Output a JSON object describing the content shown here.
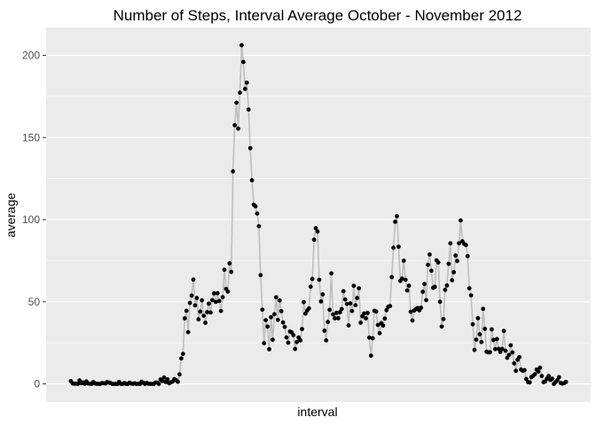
{
  "chart_data": {
    "type": "line",
    "title": "Number of Steps, Interval Average October - November 2012",
    "xlabel": "interval",
    "ylabel": "average",
    "ylim": [
      -11,
      217
    ],
    "yticks": [
      0,
      50,
      100,
      150,
      200
    ],
    "x_tick_labels_shown": false,
    "grid": true,
    "points_marked": true,
    "colors": {
      "panel_background": "#ebebeb",
      "grid": "#ffffff",
      "line": "#bebebe",
      "point": "#000000"
    },
    "series": [
      {
        "values": [
          1.7,
          0.3,
          0.1,
          0.2,
          0.0,
          2.1,
          0.5,
          0.9,
          0.0,
          1.5,
          0.3,
          0.1,
          0.0,
          1.1,
          0.3,
          0.1,
          0.0,
          0.0,
          0.5,
          0.4,
          0.3,
          1.1,
          0.9,
          0.5,
          0.0,
          0.0,
          0.0,
          0.0,
          1.2,
          0.0,
          0.0,
          0.6,
          0.0,
          0.0,
          0.8,
          0.2,
          0.1,
          0.4,
          0.0,
          0.1,
          0.0,
          1.3,
          0.7,
          0.0,
          0.6,
          0.1,
          0.0,
          0.0,
          0.0,
          0.8,
          0.8,
          0.0,
          2.7,
          1.8,
          3.9,
          1.2,
          2.8,
          0.4,
          1.0,
          1.4,
          2.9,
          2.3,
          1.3,
          5.8,
          15.5,
          18.3,
          39.9,
          44.5,
          31.5,
          49.3,
          53.8,
          63.5,
          47.8,
          52.3,
          39.3,
          44.0,
          50.9,
          41.5,
          37.2,
          43.7,
          48.9,
          43.5,
          51.0,
          55.1,
          49.9,
          55.2,
          50.5,
          44.4,
          52.8,
          69.5,
          57.8,
          56.2,
          73.4,
          68.2,
          129.4,
          157.5,
          171.2,
          155.4,
          177.3,
          206.2,
          196.0,
          179.6,
          183.4,
          167.0,
          143.5,
          124.0,
          109.1,
          108.1,
          103.7,
          96.0,
          66.2,
          45.2,
          24.8,
          38.8,
          34.9,
          21.1,
          40.6,
          26.9,
          42.4,
          52.7,
          39.0,
          50.8,
          44.3,
          37.4,
          34.7,
          28.3,
          25.1,
          31.9,
          31.4,
          29.7,
          21.3,
          25.5,
          28.3,
          26.5,
          33.4,
          49.8,
          42.8,
          44.7,
          46.0,
          59.2,
          63.9,
          87.8,
          94.8,
          92.8,
          63.4,
          50.2,
          54.5,
          32.4,
          26.5,
          37.7,
          45.1,
          67.3,
          42.3,
          39.9,
          43.3,
          40.0,
          43.6,
          45.6,
          56.4,
          51.4,
          48.7,
          35.6,
          49.0,
          44.4,
          59.7,
          47.9,
          52.3,
          58.2,
          37.3,
          41.2,
          42.9,
          39.9,
          43.2,
          28.2,
          17.2,
          27.8,
          44.5,
          44.1,
          35.9,
          30.9,
          37.0,
          35.5,
          39.8,
          44.9,
          47.0,
          47.4,
          65.0,
          82.9,
          98.7,
          102.1,
          83.5,
          62.7,
          64.1,
          75.0,
          63.4,
          56.9,
          59.8,
          43.9,
          38.6,
          44.7,
          45.5,
          46.2,
          44.8,
          46.4,
          56.1,
          60.8,
          51.0,
          72.5,
          78.8,
          68.9,
          58.5,
          59.1,
          75.2,
          73.9,
          50.0,
          34.9,
          39.5,
          57.3,
          59.9,
          73.1,
          85.6,
          63.1,
          68.0,
          78.2,
          74.8,
          85.6,
          99.5,
          86.8,
          85.3,
          84.5,
          77.8,
          58.2,
          53.9,
          36.3,
          20.7,
          27.0,
          40.0,
          30.2,
          25.5,
          45.7,
          33.5,
          19.6,
          19.2,
          19.3,
          33.2,
          26.8,
          21.2,
          27.3,
          21.3,
          19.5,
          21.3,
          32.3,
          20.2,
          15.9,
          17.6,
          23.5,
          19.2,
          12.5,
          8.0,
          14.7,
          16.3,
          8.7,
          8.0,
          8.4,
          3.0,
          1.1,
          0.9,
          4.1,
          5.0,
          5.9,
          8.7,
          7.5,
          9.9,
          4.8,
          1.0,
          1.5,
          3.2,
          4.8,
          2.4,
          3.2,
          0.0,
          1.1,
          2.2,
          4.1,
          0.5,
          0.2,
          0.5,
          1.2
        ]
      }
    ]
  }
}
